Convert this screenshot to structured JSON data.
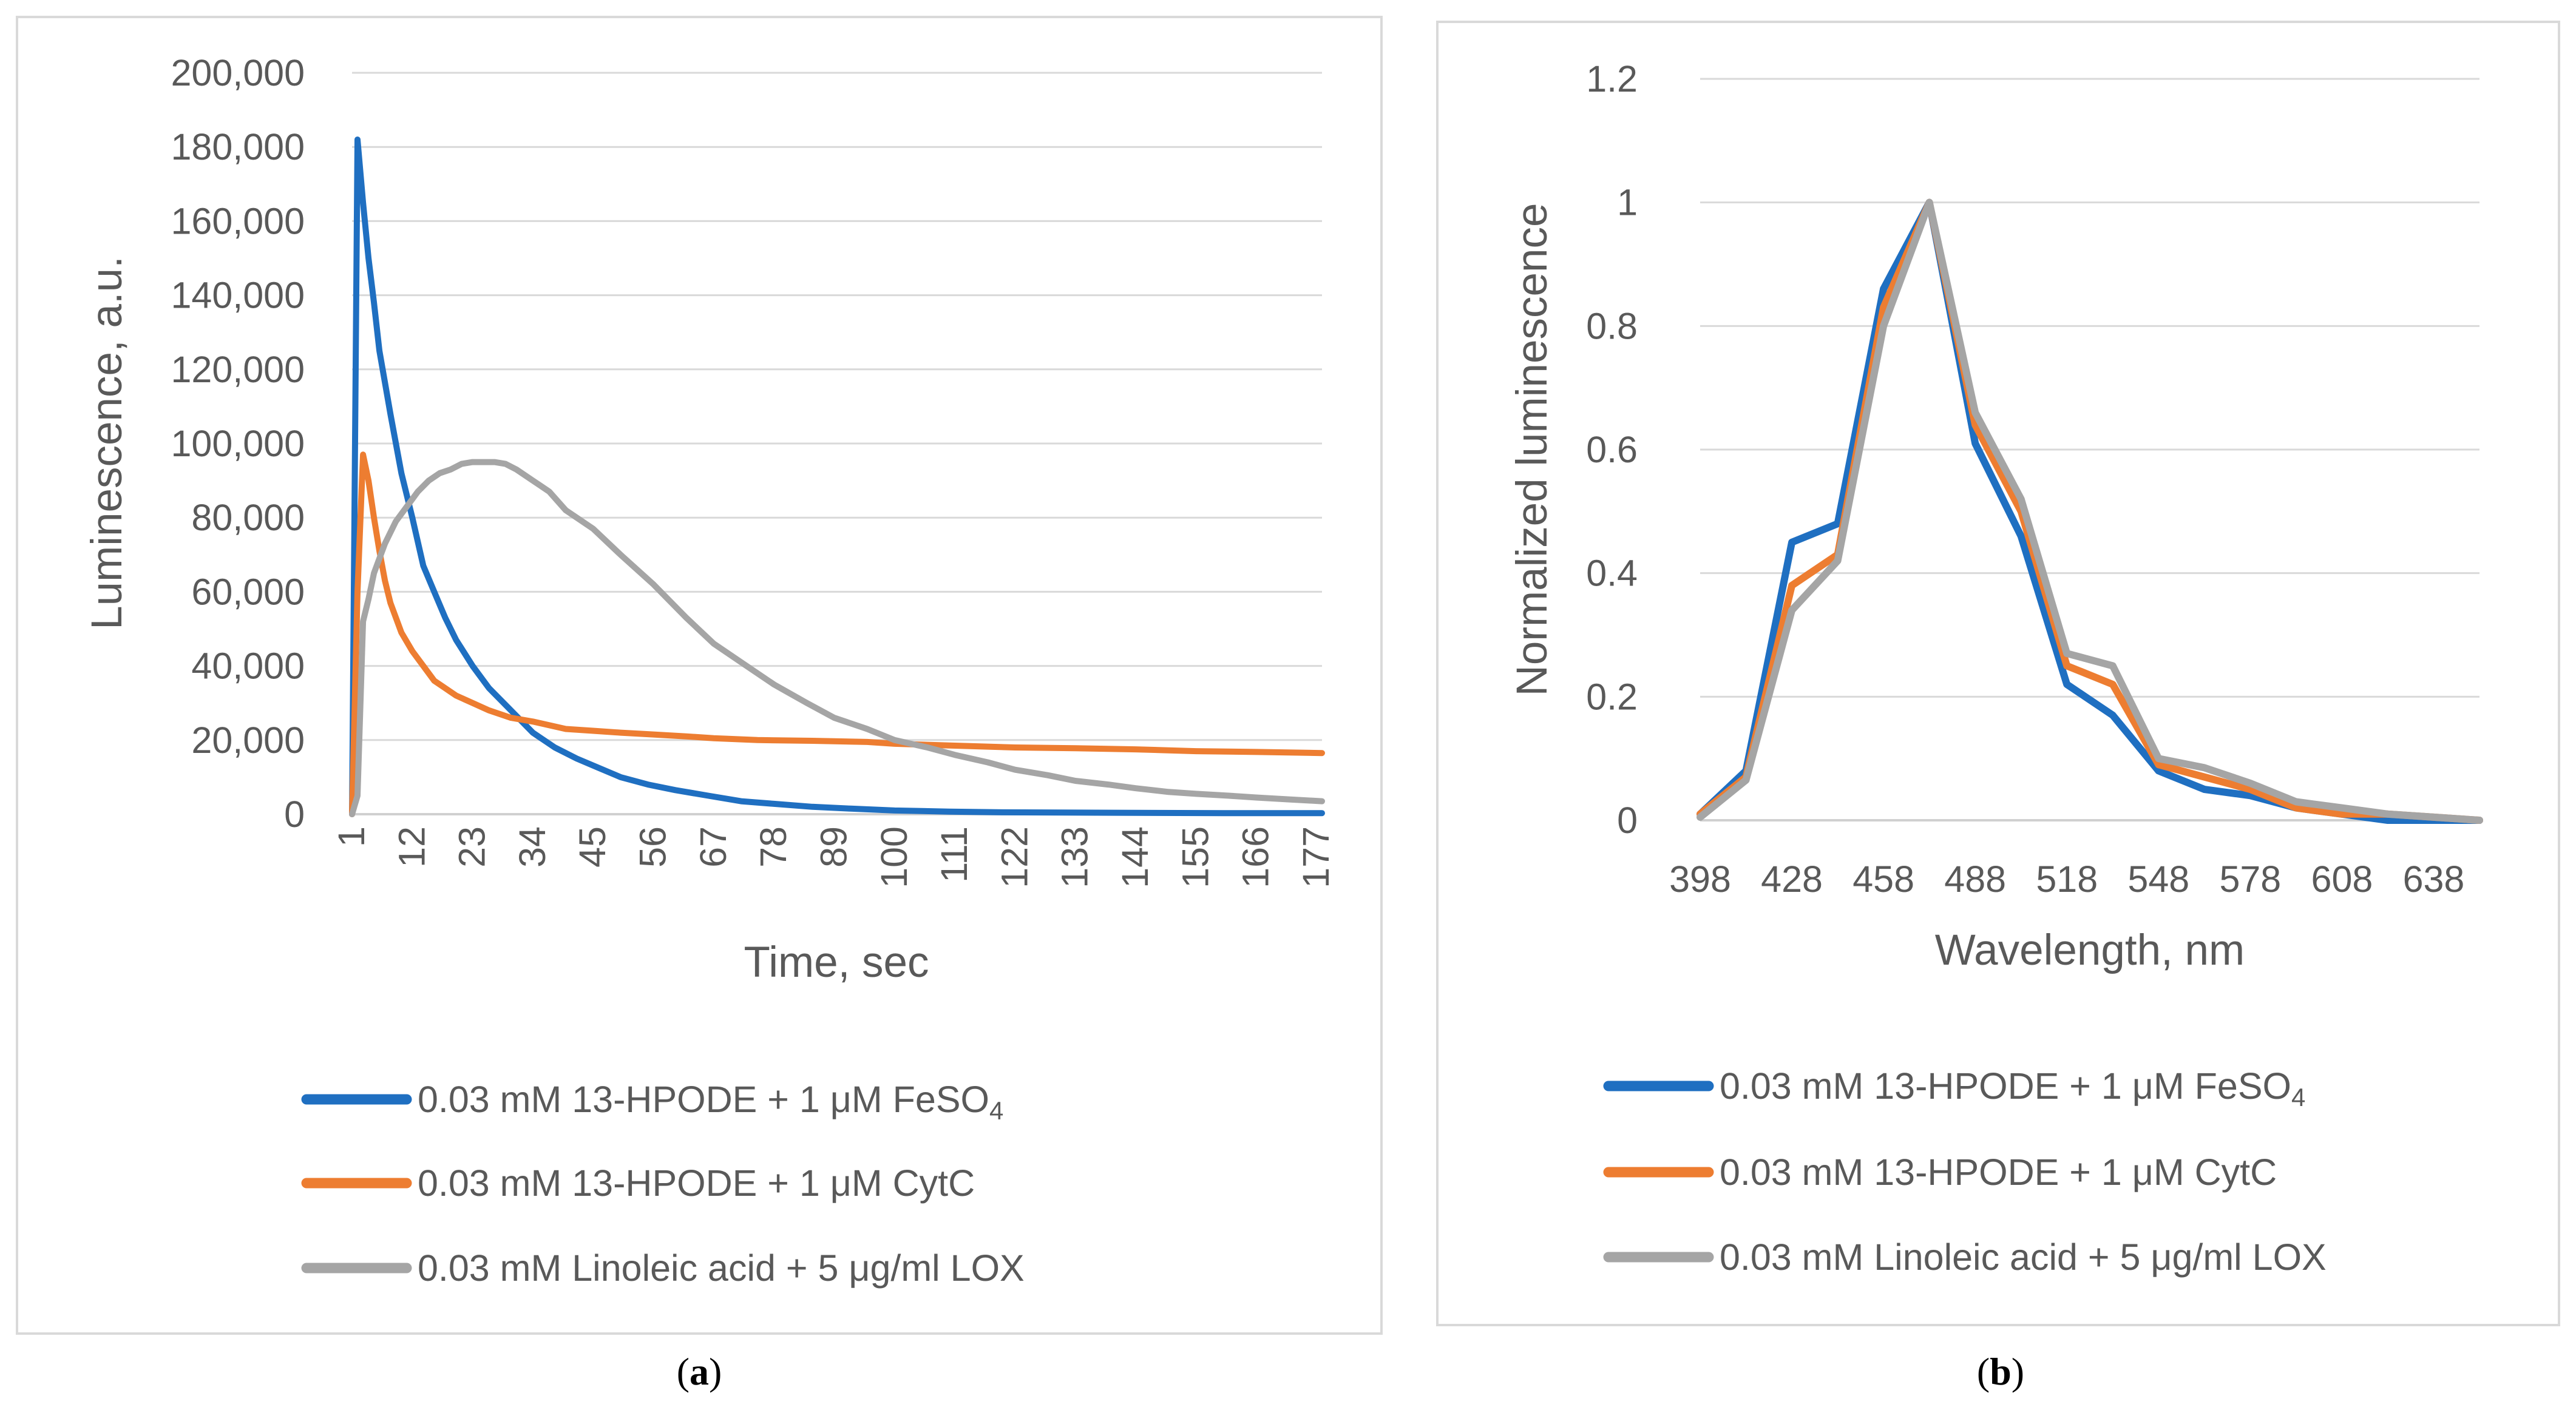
{
  "chart_data": [
    {
      "type": "line",
      "panel_label": "a",
      "xlabel": "Time, sec",
      "ylabel": "Luminescence, a.u.",
      "ylim": [
        0,
        200000
      ],
      "xlim": [
        1,
        178
      ],
      "y_ticks": [
        "0",
        "20,000",
        "40,000",
        "60,000",
        "80,000",
        "100,000",
        "120,000",
        "140,000",
        "160,000",
        "180,000",
        "200,000"
      ],
      "x_ticks": [
        "1",
        "12",
        "23",
        "34",
        "45",
        "56",
        "67",
        "78",
        "89",
        "100",
        "111",
        "122",
        "133",
        "144",
        "155",
        "166",
        "177"
      ],
      "grid": true,
      "legend_position": "bottom",
      "series": [
        {
          "name": "0.03 mM 13-HPODE + 1 μM FeSO",
          "name_subscript": "4",
          "color": "#1f6fc1",
          "x": [
            1,
            2,
            3,
            4,
            5,
            6,
            8,
            10,
            12,
            14,
            16,
            18,
            20,
            23,
            26,
            30,
            34,
            38,
            42,
            46,
            50,
            55,
            60,
            66,
            72,
            78,
            85,
            92,
            100,
            110,
            120,
            140,
            160,
            178
          ],
          "y": [
            0,
            182000,
            165000,
            150000,
            138000,
            125000,
            108000,
            92000,
            80000,
            67000,
            60000,
            53000,
            47000,
            40000,
            34000,
            28000,
            22000,
            18000,
            15000,
            12500,
            10000,
            8000,
            6500,
            5000,
            3500,
            2800,
            2000,
            1500,
            1000,
            700,
            500,
            400,
            300,
            300
          ]
        },
        {
          "name": "0.03 mM 13-HPODE + 1 μM CytC",
          "color": "#ed7d31",
          "x": [
            1,
            2,
            3,
            4,
            5,
            6,
            7,
            8,
            10,
            12,
            14,
            16,
            18,
            20,
            23,
            26,
            30,
            34,
            40,
            45,
            50,
            56,
            62,
            67,
            75,
            85,
            95,
            100,
            111,
            122,
            133,
            144,
            155,
            166,
            178
          ],
          "y": [
            0,
            60000,
            97000,
            90000,
            80000,
            71000,
            63000,
            57000,
            49000,
            44000,
            40000,
            36000,
            34000,
            32000,
            30000,
            28000,
            26000,
            25000,
            23000,
            22500,
            22000,
            21500,
            21000,
            20500,
            20000,
            19800,
            19500,
            19000,
            18500,
            18000,
            17800,
            17500,
            17000,
            16800,
            16500
          ]
        },
        {
          "name": "0.03 mM Linoleic acid + 5 μg/ml  LOX",
          "color": "#a5a5a5",
          "x": [
            1,
            2,
            3,
            4,
            5,
            7,
            9,
            11,
            13,
            15,
            17,
            19,
            21,
            23,
            25,
            27,
            29,
            31,
            34,
            37,
            40,
            45,
            50,
            56,
            62,
            67,
            73,
            78,
            84,
            89,
            95,
            100,
            106,
            111,
            117,
            122,
            128,
            133,
            139,
            144,
            150,
            155,
            161,
            166,
            172,
            178
          ],
          "y": [
            0,
            5000,
            52000,
            58000,
            65000,
            73000,
            79000,
            83000,
            87000,
            90000,
            92000,
            93000,
            94500,
            95000,
            95000,
            95000,
            94500,
            93000,
            90000,
            87000,
            82000,
            77000,
            70000,
            62000,
            53000,
            46000,
            40000,
            35000,
            30000,
            26000,
            23000,
            20000,
            18000,
            16000,
            14000,
            12000,
            10500,
            9000,
            8000,
            7000,
            6000,
            5500,
            5000,
            4500,
            4000,
            3500
          ]
        }
      ]
    },
    {
      "type": "line",
      "panel_label": "b",
      "xlabel": "Wavelength, nm",
      "ylabel": "Normalized luminescence",
      "ylim": [
        0,
        1.2
      ],
      "xlim": [
        398,
        653
      ],
      "y_ticks": [
        "0",
        "0.2",
        "0.4",
        "0.6",
        "0.8",
        "1",
        "1.2"
      ],
      "x_ticks": [
        "398",
        "428",
        "458",
        "488",
        "518",
        "548",
        "578",
        "608",
        "638"
      ],
      "grid": true,
      "legend_position": "bottom",
      "series": [
        {
          "name": "0.03 mM 13-HPODE + 1 μM FeSO",
          "name_subscript": "4",
          "color": "#1f6fc1",
          "x": [
            398,
            413,
            428,
            443,
            458,
            473,
            488,
            503,
            518,
            533,
            548,
            563,
            578,
            593,
            608,
            623,
            638,
            653
          ],
          "y": [
            0.01,
            0.08,
            0.45,
            0.48,
            0.86,
            1.0,
            0.61,
            0.46,
            0.22,
            0.17,
            0.08,
            0.05,
            0.04,
            0.02,
            0.01,
            0.0,
            0.0,
            0.0
          ]
        },
        {
          "name": "0.03 mM 13-HPODE + 1 μM CytC",
          "color": "#ed7d31",
          "x": [
            398,
            413,
            428,
            443,
            458,
            473,
            488,
            503,
            518,
            533,
            548,
            563,
            578,
            593,
            608,
            623,
            638,
            653
          ],
          "y": [
            0.01,
            0.07,
            0.38,
            0.43,
            0.83,
            1.0,
            0.64,
            0.5,
            0.25,
            0.22,
            0.09,
            0.07,
            0.05,
            0.02,
            0.01,
            0.01,
            0.005,
            0.0
          ]
        },
        {
          "name": "0.03 mM Linoleic acid + 5 μg/ml  LOX",
          "color": "#a5a5a5",
          "x": [
            398,
            413,
            428,
            443,
            458,
            473,
            488,
            503,
            518,
            533,
            548,
            563,
            578,
            593,
            608,
            623,
            638,
            653
          ],
          "y": [
            0.005,
            0.065,
            0.34,
            0.42,
            0.8,
            1.0,
            0.66,
            0.52,
            0.27,
            0.25,
            0.1,
            0.085,
            0.06,
            0.03,
            0.02,
            0.01,
            0.005,
            0.0
          ]
        }
      ]
    }
  ]
}
